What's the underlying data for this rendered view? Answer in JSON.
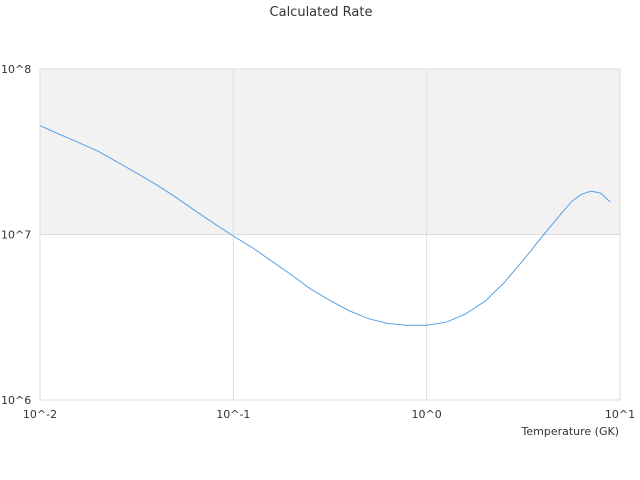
{
  "chart_data": {
    "type": "line",
    "title": "Calculated Rate",
    "xlabel": "Temperature (GK)",
    "ylabel": "",
    "xscale": "log",
    "yscale": "log",
    "xlim": [
      0.01,
      10
    ],
    "ylim": [
      1000000,
      100000000
    ],
    "grid": true,
    "x_ticks": [
      "10^-2",
      "10^-1",
      "10^0",
      "10^1"
    ],
    "y_ticks": [
      "10^6",
      "10^7",
      "10^8"
    ],
    "colors": {
      "line": "#5aa0e6",
      "band": "#f2f2f2",
      "grid": "#dddddd"
    },
    "series": [
      {
        "x": [
          0.01,
          0.0125,
          0.0158,
          0.02,
          0.025,
          0.0316,
          0.04,
          0.05,
          0.063,
          0.08,
          0.1,
          0.126,
          0.158,
          0.2,
          0.25,
          0.316,
          0.4,
          0.5,
          0.63,
          0.79,
          1.0,
          1.26,
          1.58,
          2.0,
          2.51,
          3.16,
          3.98,
          5.0,
          5.62,
          6.31,
          7.08,
          7.94,
          8.91
        ],
        "y": [
          45500000,
          40500000,
          36000000,
          31800000,
          27500000,
          23500000,
          20000000,
          16900000,
          14000000,
          11600000,
          9800000,
          8300000,
          6900000,
          5700000,
          4700000,
          4000000,
          3450000,
          3100000,
          2900000,
          2830000,
          2830000,
          2950000,
          3300000,
          3950000,
          5100000,
          7000000,
          9800000,
          13500000,
          15800000,
          17500000,
          18300000,
          17800000,
          15700000
        ]
      }
    ]
  }
}
